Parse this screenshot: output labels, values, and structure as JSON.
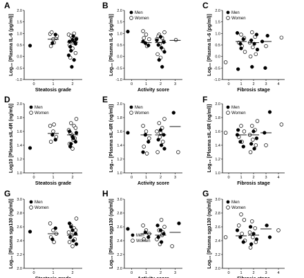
{
  "figure": {
    "panels": [
      {
        "letter": "A",
        "ylabel": "Log₁₀ [Plasma IL-6 (pg/ml)]",
        "xlabel": "Steatosis grade"
      },
      {
        "letter": "B",
        "ylabel": "Log₁₀ [Plasma IL-6 (pg/ml)]",
        "xlabel": "Activity score"
      },
      {
        "letter": "C",
        "ylabel": "Log₁₀ [Plasma IL-6 (pg/ml)]",
        "xlabel": "Fibrosis stage"
      },
      {
        "letter": "D",
        "ylabel": "Log10 [Plasma sIL-6R (ng/ml)]",
        "xlabel": "Steatosis grade"
      },
      {
        "letter": "E",
        "ylabel": "Log₁₀ [Plasma sIL-6R (ng/ml)]",
        "xlabel": "Activity score"
      },
      {
        "letter": "F",
        "ylabel": "Log₁₀ [Plasma sIL-6R (ng/ml)]",
        "xlabel": "Fibrosis stage"
      },
      {
        "letter": "G",
        "ylabel": "Log₁₀ [Plasma sgp130 (ng/ml)]",
        "xlabel": "Steatosis grade"
      },
      {
        "letter": "H",
        "ylabel": "Log₁₀ [Plasma sgp130 (ng/ml)]",
        "xlabel": "Activity score"
      },
      {
        "letter": "G",
        "ylabel": "Log₁₀ [Plasma sgp130 (ng/ml)]",
        "xlabel": "Fibrosis stage"
      }
    ],
    "legend": {
      "men": "Men",
      "women": "Women"
    }
  },
  "chart_data": [
    {
      "panel": "A",
      "type": "scatter",
      "ylim": [
        -1.0,
        2.0
      ],
      "yticks": [
        "-1.0",
        "-0.5",
        "0.0",
        "0.5",
        "1.0",
        "1.5",
        "2.0"
      ],
      "categories": [
        "0",
        "1",
        "2"
      ],
      "men": [
        [
          0,
          0.47
        ],
        [
          1,
          0.58
        ],
        [
          1,
          0.95
        ],
        [
          2,
          0.65
        ],
        [
          2,
          0.72
        ],
        [
          2,
          0.55
        ],
        [
          2,
          0.42
        ],
        [
          2,
          0.88
        ],
        [
          2,
          0.75
        ],
        [
          2,
          0.25
        ],
        [
          2,
          -0.15
        ],
        [
          2,
          0.05
        ],
        [
          2,
          -0.45
        ],
        [
          2,
          0.62
        ]
      ],
      "women": [
        [
          1,
          0.98
        ],
        [
          1,
          0.75
        ],
        [
          1,
          0.8
        ],
        [
          1,
          0.45
        ],
        [
          1,
          0.6
        ],
        [
          1,
          0.88
        ],
        [
          1,
          1.05
        ],
        [
          2,
          1.0
        ],
        [
          2,
          0.95
        ],
        [
          2,
          0.85
        ],
        [
          2,
          0.7
        ],
        [
          2,
          0.5
        ],
        [
          2,
          0.35
        ],
        [
          2,
          0.15
        ],
        [
          2,
          -0.05
        ],
        [
          2,
          0.6
        ],
        [
          2,
          0.78
        ],
        [
          2,
          0.9
        ]
      ],
      "medians": [
        null,
        0.75,
        0.62
      ]
    },
    {
      "panel": "B",
      "type": "scatter",
      "ylim": [
        -1.0,
        2.0
      ],
      "yticks": [
        "-1.0",
        "-0.5",
        "0.0",
        "0.5",
        "1.0",
        "1.5",
        "2.0"
      ],
      "categories": [
        "0",
        "1",
        "2",
        "3"
      ],
      "men": [
        [
          0,
          1.08
        ],
        [
          1,
          0.58
        ],
        [
          1,
          0.48
        ],
        [
          1,
          0.65
        ],
        [
          2,
          0.85
        ],
        [
          2,
          0.62
        ],
        [
          2,
          0.5
        ],
        [
          2,
          0.38
        ],
        [
          2,
          0.2
        ],
        [
          2,
          -0.15
        ],
        [
          2,
          -0.45
        ],
        [
          2,
          0.7
        ]
      ],
      "women": [
        [
          1,
          1.1
        ],
        [
          1,
          0.95
        ],
        [
          1,
          0.75
        ],
        [
          1,
          0.8
        ],
        [
          1,
          0.45
        ],
        [
          2,
          1.05
        ],
        [
          2,
          0.95
        ],
        [
          2,
          0.8
        ],
        [
          2,
          0.75
        ],
        [
          2,
          0.55
        ],
        [
          2,
          0.3
        ],
        [
          2,
          0.1
        ],
        [
          2,
          -0.05
        ],
        [
          2,
          0.65
        ],
        [
          2,
          0.88
        ],
        [
          3,
          0.72
        ]
      ],
      "medians": [
        null,
        0.6,
        0.6,
        0.7
      ]
    },
    {
      "panel": "C",
      "type": "scatter",
      "ylim": [
        -1.0,
        2.0
      ],
      "yticks": [
        "-1.0",
        "-0.5",
        "0.0",
        "0.5",
        "1.0",
        "1.5",
        "2.0"
      ],
      "categories": [
        "0",
        "1",
        "2",
        "3",
        "4"
      ],
      "men": [
        [
          1,
          1.02
        ],
        [
          1,
          0.55
        ],
        [
          1,
          0.75
        ],
        [
          1,
          -0.55
        ],
        [
          1,
          0.35
        ],
        [
          2,
          0.95
        ],
        [
          2,
          0.7
        ],
        [
          2,
          0.55
        ],
        [
          2,
          0.3
        ],
        [
          2,
          -0.45
        ],
        [
          3,
          0.9
        ],
        [
          3,
          0.65
        ],
        [
          3,
          -0.5
        ]
      ],
      "women": [
        [
          0,
          -0.25
        ],
        [
          1,
          0.95
        ],
        [
          1,
          0.8
        ],
        [
          1,
          0.6
        ],
        [
          1,
          0.45
        ],
        [
          1,
          0.2
        ],
        [
          2,
          1.05
        ],
        [
          2,
          0.85
        ],
        [
          2,
          0.6
        ],
        [
          2,
          0.4
        ],
        [
          2,
          0.1
        ],
        [
          2,
          0.0
        ],
        [
          3,
          0.45
        ],
        [
          4,
          0.82
        ]
      ],
      "medians": [
        null,
        0.65,
        0.6,
        0.65,
        null
      ]
    },
    {
      "panel": "D",
      "type": "scatter",
      "ylim": [
        1.0,
        2.0
      ],
      "yticks": [
        "1.0",
        "1.2",
        "1.4",
        "1.6",
        "1.8",
        "2.0"
      ],
      "categories": [
        "0",
        "1",
        "2"
      ],
      "men": [
        [
          0,
          1.36
        ],
        [
          1,
          1.55
        ],
        [
          1,
          1.48
        ],
        [
          2,
          1.6
        ],
        [
          2,
          1.52
        ],
        [
          2,
          1.45
        ],
        [
          2,
          1.38
        ],
        [
          2,
          1.5
        ],
        [
          2,
          1.58
        ],
        [
          2,
          1.42
        ]
      ],
      "women": [
        [
          1,
          1.68
        ],
        [
          1,
          1.6
        ],
        [
          1,
          1.52
        ],
        [
          1,
          1.45
        ],
        [
          1,
          1.7
        ],
        [
          2,
          1.78
        ],
        [
          2,
          1.72
        ],
        [
          2,
          1.68
        ],
        [
          2,
          1.62
        ],
        [
          2,
          1.55
        ],
        [
          2,
          1.5
        ],
        [
          2,
          1.42
        ],
        [
          2,
          1.35
        ],
        [
          2,
          1.65
        ],
        [
          2,
          1.58
        ],
        [
          2,
          1.48
        ]
      ],
      "medians": [
        null,
        1.57,
        1.55
      ]
    },
    {
      "panel": "E",
      "type": "scatter",
      "ylim": [
        1.0,
        2.0
      ],
      "yticks": [
        "1.0",
        "1.2",
        "1.4",
        "1.6",
        "1.8",
        "2.0"
      ],
      "categories": [
        "0",
        "1",
        "2",
        "3"
      ],
      "men": [
        [
          0,
          1.58
        ],
        [
          1,
          1.55
        ],
        [
          1,
          1.45
        ],
        [
          1,
          1.3
        ],
        [
          2,
          1.62
        ],
        [
          2,
          1.55
        ],
        [
          2,
          1.48
        ],
        [
          2,
          1.4
        ],
        [
          2,
          1.35
        ],
        [
          3,
          1.87
        ]
      ],
      "women": [
        [
          1,
          1.68
        ],
        [
          1,
          1.6
        ],
        [
          1,
          1.5
        ],
        [
          1,
          1.38
        ],
        [
          1,
          1.28
        ],
        [
          2,
          1.78
        ],
        [
          2,
          1.72
        ],
        [
          2,
          1.65
        ],
        [
          2,
          1.6
        ],
        [
          2,
          1.52
        ],
        [
          2,
          1.45
        ],
        [
          2,
          1.3
        ],
        [
          2,
          1.58
        ],
        [
          3,
          1.3
        ]
      ],
      "medians": [
        null,
        1.55,
        1.55,
        1.67
      ]
    },
    {
      "panel": "F",
      "type": "scatter",
      "ylim": [
        1.0,
        2.0
      ],
      "yticks": [
        "1.0",
        "1.2",
        "1.4",
        "1.6",
        "1.8",
        "2.0"
      ],
      "categories": [
        "0",
        "1",
        "2",
        "3",
        "4"
      ],
      "men": [
        [
          1,
          1.55
        ],
        [
          1,
          1.45
        ],
        [
          1,
          1.38
        ],
        [
          1,
          1.62
        ],
        [
          2,
          1.6
        ],
        [
          2,
          1.5
        ],
        [
          2,
          1.42
        ],
        [
          2,
          1.35
        ],
        [
          3,
          1.88
        ],
        [
          3,
          1.58
        ]
      ],
      "women": [
        [
          0,
          1.58
        ],
        [
          1,
          1.68
        ],
        [
          1,
          1.6
        ],
        [
          1,
          1.52
        ],
        [
          1,
          1.45
        ],
        [
          2,
          1.75
        ],
        [
          2,
          1.68
        ],
        [
          2,
          1.62
        ],
        [
          2,
          1.55
        ],
        [
          2,
          1.48
        ],
        [
          2,
          1.4
        ],
        [
          2,
          1.3
        ],
        [
          3,
          1.4
        ],
        [
          4,
          1.7
        ]
      ],
      "medians": [
        null,
        1.55,
        1.55,
        1.58,
        null
      ]
    },
    {
      "panel": "G",
      "type": "scatter",
      "ylim": [
        2.0,
        3.0
      ],
      "yticks": [
        "2.0",
        "2.2",
        "2.4",
        "2.6",
        "2.8",
        "3.0"
      ],
      "categories": [
        "0",
        "1",
        "2"
      ],
      "men": [
        [
          0,
          2.53
        ],
        [
          1,
          2.42
        ],
        [
          1,
          2.58
        ],
        [
          2,
          2.65
        ],
        [
          2,
          2.55
        ],
        [
          2,
          2.5
        ],
        [
          2,
          2.45
        ],
        [
          2,
          2.4
        ],
        [
          2,
          2.35
        ],
        [
          2,
          2.6
        ]
      ],
      "women": [
        [
          1,
          2.65
        ],
        [
          1,
          2.55
        ],
        [
          1,
          2.5
        ],
        [
          1,
          2.45
        ],
        [
          1,
          2.38
        ],
        [
          2,
          2.72
        ],
        [
          2,
          2.62
        ],
        [
          2,
          2.58
        ],
        [
          2,
          2.52
        ],
        [
          2,
          2.48
        ],
        [
          2,
          2.42
        ],
        [
          2,
          2.38
        ],
        [
          2,
          2.32
        ],
        [
          2,
          2.55
        ]
      ],
      "medians": [
        null,
        2.5,
        2.48
      ]
    },
    {
      "panel": "H",
      "type": "scatter",
      "ylim": [
        2.0,
        3.0
      ],
      "yticks": [
        "2.0",
        "2.2",
        "2.4",
        "2.6",
        "2.8",
        "3.0"
      ],
      "categories": [
        "0",
        "1",
        "2",
        "3"
      ],
      "men": [
        [
          0,
          2.57
        ],
        [
          1,
          2.52
        ],
        [
          1,
          2.45
        ],
        [
          2,
          2.62
        ],
        [
          2,
          2.55
        ],
        [
          2,
          2.5
        ],
        [
          2,
          2.45
        ],
        [
          2,
          2.38
        ],
        [
          3,
          2.65
        ]
      ],
      "women": [
        [
          1,
          2.62
        ],
        [
          1,
          2.55
        ],
        [
          1,
          2.5
        ],
        [
          1,
          2.42
        ],
        [
          2,
          2.7
        ],
        [
          2,
          2.6
        ],
        [
          2,
          2.55
        ],
        [
          2,
          2.48
        ],
        [
          2,
          2.42
        ],
        [
          2,
          2.35
        ],
        [
          2,
          2.52
        ],
        [
          3,
          2.32
        ]
      ],
      "medians": [
        null,
        2.5,
        2.48,
        2.52
      ]
    },
    {
      "panel": "G",
      "type": "scatter",
      "ylim": [
        2.0,
        3.0
      ],
      "yticks": [
        "2.0",
        "2.2",
        "2.4",
        "2.6",
        "2.8",
        "3.0"
      ],
      "categories": [
        "0",
        "1",
        "2",
        "3",
        "4"
      ],
      "men": [
        [
          1,
          2.55
        ],
        [
          1,
          2.45
        ],
        [
          1,
          2.38
        ],
        [
          2,
          2.6
        ],
        [
          2,
          2.5
        ],
        [
          2,
          2.42
        ],
        [
          2,
          2.35
        ],
        [
          3,
          2.62
        ],
        [
          3,
          2.45
        ]
      ],
      "women": [
        [
          0,
          2.45
        ],
        [
          1,
          2.78
        ],
        [
          1,
          2.7
        ],
        [
          1,
          2.62
        ],
        [
          1,
          2.5
        ],
        [
          1,
          2.4
        ],
        [
          2,
          2.68
        ],
        [
          2,
          2.58
        ],
        [
          2,
          2.52
        ],
        [
          2,
          2.45
        ],
        [
          2,
          2.38
        ],
        [
          2,
          2.3
        ],
        [
          4,
          2.55
        ]
      ],
      "medians": [
        null,
        2.47,
        2.48,
        2.57,
        null
      ]
    }
  ]
}
